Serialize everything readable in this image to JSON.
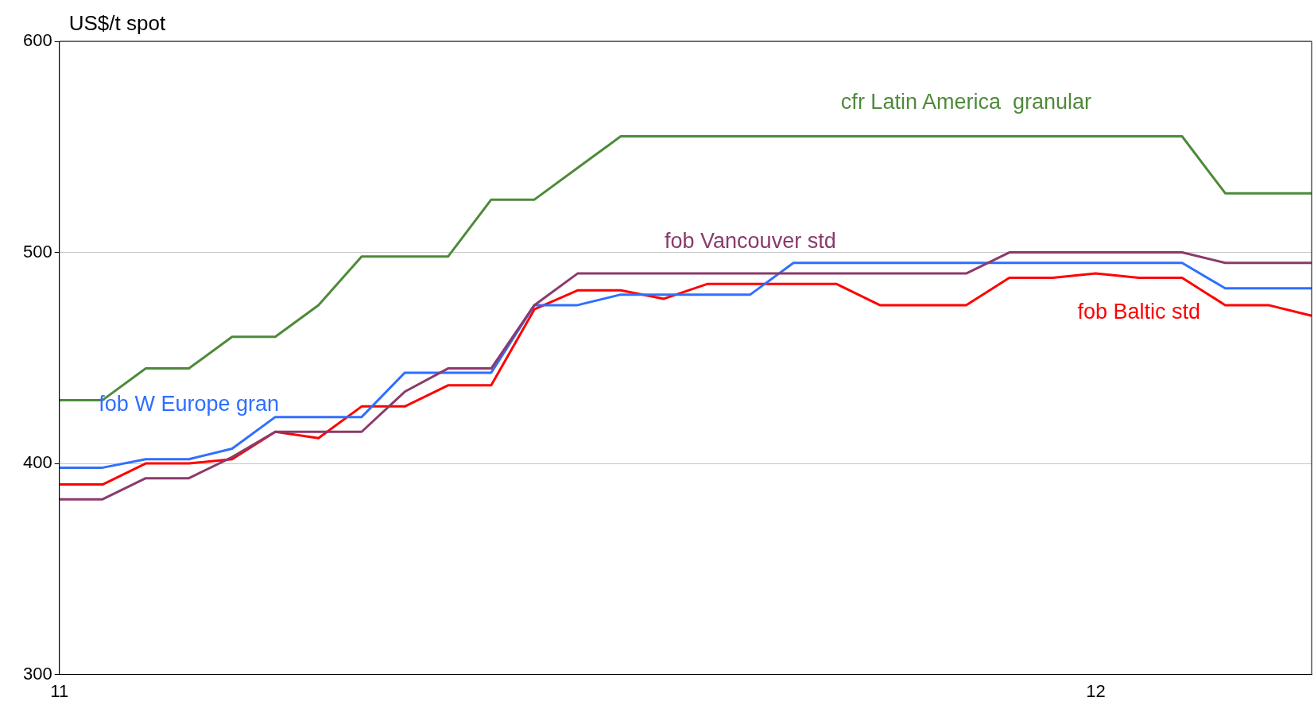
{
  "chart_data": {
    "type": "line",
    "ylabel": "US$/t spot",
    "categories": [
      "11",
      null,
      null,
      null,
      null,
      null,
      null,
      null,
      null,
      null,
      null,
      null,
      null,
      null,
      null,
      null,
      null,
      null,
      null,
      null,
      null,
      null,
      null,
      null,
      "12",
      null,
      null,
      null,
      null,
      null
    ],
    "ylim": [
      300,
      600
    ],
    "yticks": [
      300,
      400,
      500,
      600
    ],
    "grid": "y",
    "legend": false,
    "marker": "none",
    "line_style": "solid",
    "series": [
      {
        "name": "cfr Latin America  granular",
        "color": "#4e8a3a",
        "values": [
          430,
          430,
          445,
          445,
          460,
          460,
          475,
          498,
          498,
          498,
          525,
          525,
          540,
          555,
          555,
          555,
          555,
          555,
          555,
          555,
          555,
          555,
          555,
          555,
          555,
          555,
          555,
          528,
          528,
          528
        ]
      },
      {
        "name": "fob Vancouver std",
        "color": "#8b3a6b",
        "values": [
          383,
          383,
          393,
          393,
          403,
          415,
          415,
          415,
          434,
          445,
          445,
          475,
          490,
          490,
          490,
          490,
          490,
          490,
          490,
          490,
          490,
          490,
          500,
          500,
          500,
          500,
          500,
          495,
          495,
          495
        ]
      },
      {
        "name": "fob W Europe gran",
        "color": "#2f6fff",
        "values": [
          398,
          398,
          402,
          402,
          407,
          422,
          422,
          422,
          443,
          443,
          443,
          475,
          475,
          480,
          480,
          480,
          480,
          495,
          495,
          495,
          495,
          495,
          495,
          495,
          495,
          495,
          495,
          483,
          483,
          483
        ]
      },
      {
        "name": "fob Baltic std",
        "color": "#ff0000",
        "values": [
          390,
          390,
          400,
          400,
          402,
          415,
          412,
          427,
          427,
          437,
          437,
          473,
          482,
          482,
          478,
          485,
          485,
          485,
          485,
          475,
          475,
          475,
          488,
          488,
          490,
          488,
          488,
          475,
          475,
          470
        ]
      }
    ]
  }
}
